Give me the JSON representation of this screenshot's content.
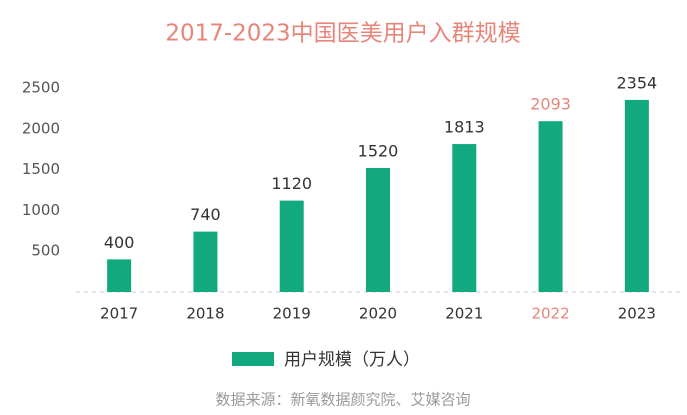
{
  "chart_data": {
    "type": "bar",
    "title": "2017-2023中国医美用户入群规模",
    "categories": [
      "2017",
      "2018",
      "2019",
      "2020",
      "2021",
      "2022",
      "2023"
    ],
    "category_label_colors": [
      "#333333",
      "#333333",
      "#333333",
      "#333333",
      "#333333",
      "#e8857a",
      "#333333"
    ],
    "series": [
      {
        "name": "用户规模（万人）",
        "color": "#13a97f",
        "values": [
          400,
          740,
          1120,
          1520,
          1813,
          2093,
          2354
        ]
      }
    ],
    "ylim": [
      0,
      2500
    ],
    "yticks": [
      500,
      1000,
      1500,
      2000,
      2500
    ],
    "grid": false,
    "source": "数据来源：新氧数据颜究院、艾媒咨询"
  }
}
